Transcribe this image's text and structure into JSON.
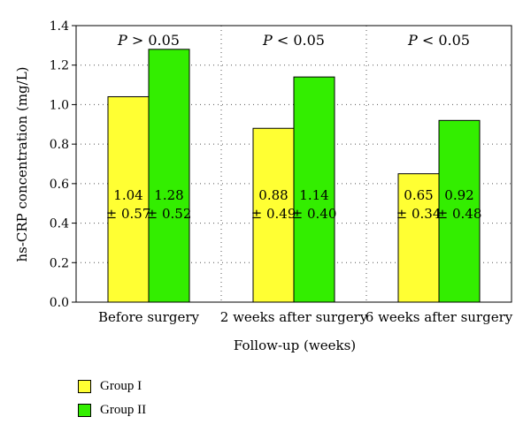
{
  "chart_data": {
    "type": "bar",
    "categories": [
      "Before surgery",
      "2 weeks after surgery",
      "6 weeks after surgery"
    ],
    "series": [
      {
        "name": "Group I",
        "values": [
          1.04,
          0.88,
          0.65
        ],
        "sd": [
          0.57,
          0.49,
          0.34
        ],
        "color": "#ffff33"
      },
      {
        "name": "Group II",
        "values": [
          1.28,
          1.14,
          0.92
        ],
        "sd": [
          0.52,
          0.4,
          0.48
        ],
        "color": "#33ee00"
      }
    ],
    "bar_labels": [
      [
        "1.04",
        "± 0.57"
      ],
      [
        "1.28",
        "± 0.52"
      ],
      [
        "0.88",
        "± 0.49"
      ],
      [
        "1.14",
        "± 0.40"
      ],
      [
        "0.65",
        "± 0.34"
      ],
      [
        "0.92",
        "± 0.48"
      ]
    ],
    "annotations": [
      "P > 0.05",
      "P < 0.05",
      "P < 0.05"
    ],
    "xlabel": "Follow-up (weeks)",
    "ylabel": "hs-CRP concentration (mg/L)",
    "ylim": [
      0,
      1.4
    ],
    "yticks": [
      "0.0",
      "0.2",
      "0.4",
      "0.6",
      "0.8",
      "1.0",
      "1.2",
      "1.4"
    ],
    "grid": "dotted",
    "legend_position": "bottom-left"
  }
}
